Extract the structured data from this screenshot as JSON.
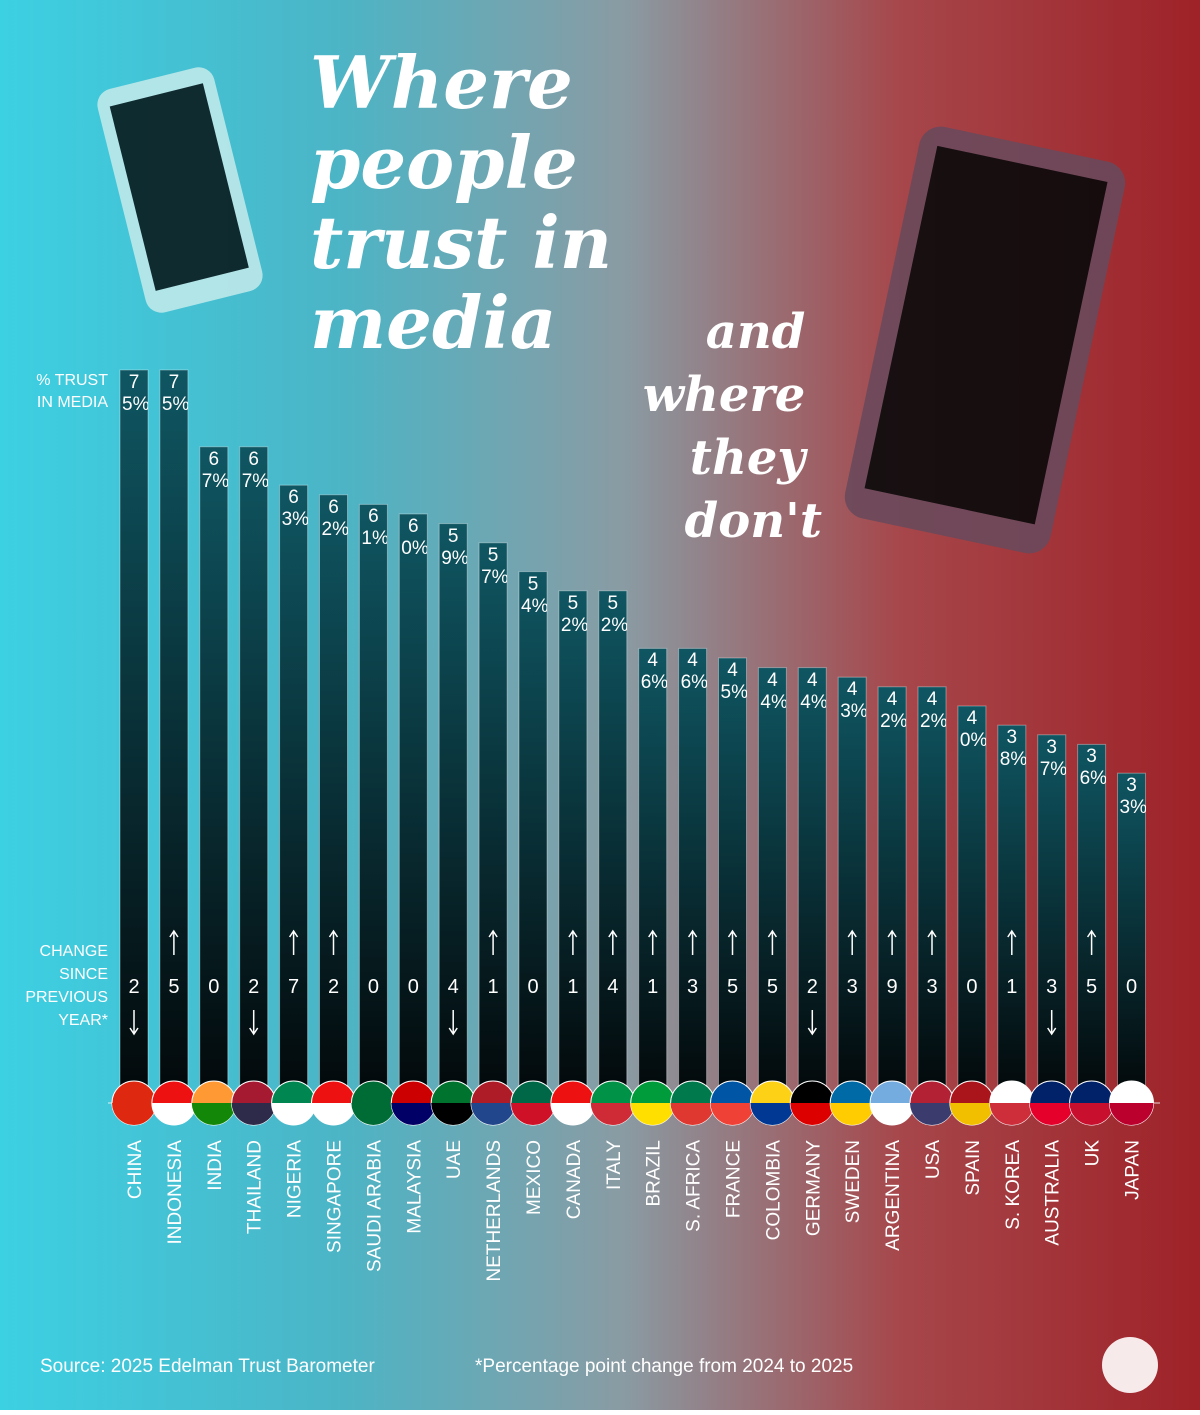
{
  "chart_data": {
    "type": "bar",
    "title": "Where people trust in media",
    "subtitle": "and where they don't",
    "value_axis_label": "% TRUST IN MEDIA",
    "change_axis_label": "CHANGE SINCE PREVIOUS YEAR*",
    "categories": [
      "CHINA",
      "INDONESIA",
      "INDIA",
      "THAILAND",
      "NIGERIA",
      "SINGAPORE",
      "SAUDI ARABIA",
      "MALAYSIA",
      "UAE",
      "NETHERLANDS",
      "MEXICO",
      "CANADA",
      "ITALY",
      "BRAZIL",
      "S. AFRICA",
      "FRANCE",
      "COLOMBIA",
      "GERMANY",
      "SWEDEN",
      "ARGENTINA",
      "USA",
      "SPAIN",
      "S. KOREA",
      "AUSTRALIA",
      "UK",
      "JAPAN"
    ],
    "values": [
      75,
      75,
      67,
      67,
      63,
      62,
      61,
      60,
      59,
      57,
      54,
      52,
      52,
      46,
      46,
      45,
      44,
      44,
      43,
      42,
      42,
      40,
      38,
      37,
      36,
      33
    ],
    "value_labels": [
      "75%",
      "75%",
      "67%",
      "67%",
      "63%",
      "62%",
      "61%",
      "60%",
      "59%",
      "57%",
      "54%",
      "52%",
      "52%",
      "46%",
      "46%",
      "45%",
      "44%",
      "44%",
      "43%",
      "42%",
      "42%",
      "40%",
      "38%",
      "37%",
      "36%",
      "33%"
    ],
    "changes": [
      -2,
      5,
      0,
      -2,
      7,
      2,
      0,
      0,
      -4,
      1,
      0,
      1,
      4,
      1,
      3,
      5,
      5,
      -2,
      3,
      9,
      3,
      0,
      1,
      -3,
      5,
      0
    ],
    "change_labels": [
      "2",
      "5",
      "0",
      "2",
      "7",
      "2",
      "0",
      "0",
      "4",
      "1",
      "0",
      "1",
      "4",
      "1",
      "3",
      "5",
      "5",
      "2",
      "3",
      "9",
      "3",
      "0",
      "1",
      "3",
      "5",
      "0"
    ],
    "source": "Source: 2025 Edelman Trust Barometer",
    "footnote": "*Percentage point change from 2024 to 2025"
  }
}
